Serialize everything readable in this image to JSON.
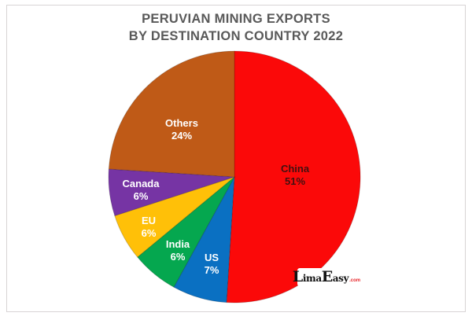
{
  "title": {
    "line1": "PERUVIAN MINING EXPORTS",
    "line2": "BY DESTINATION COUNTRY 2022",
    "color": "#595959"
  },
  "chart_data": {
    "type": "pie",
    "title": "PERUVIAN MINING EXPORTS BY DESTINATION COUNTRY 2022",
    "unit": "percent",
    "start_angle_deg": 0,
    "direction": "clockwise",
    "legend": "none",
    "data_labels": "category name and percent inside slices",
    "slices": [
      {
        "label": "China",
        "value": 51,
        "color": "#fb0909",
        "label_color": "#411111"
      },
      {
        "label": "US",
        "value": 7,
        "color": "#0a70c2",
        "label_color": "#ffffff"
      },
      {
        "label": "India",
        "value": 6,
        "color": "#05a74f",
        "label_color": "#ffffff"
      },
      {
        "label": "EU",
        "value": 6,
        "color": "#ffc008",
        "label_color": "#ffffff"
      },
      {
        "label": "Canada",
        "value": 6,
        "color": "#7634a4",
        "label_color": "#ffffff"
      },
      {
        "label": "Others",
        "value": 24,
        "color": "#bf5a17",
        "label_color": "#ffffff"
      }
    ]
  },
  "watermark": {
    "word1": "Lima",
    "word2": "Easy",
    "suffix": ".com",
    "text_color": "#111111",
    "suffix_color": "#e8262a",
    "background": "#ffffff"
  }
}
